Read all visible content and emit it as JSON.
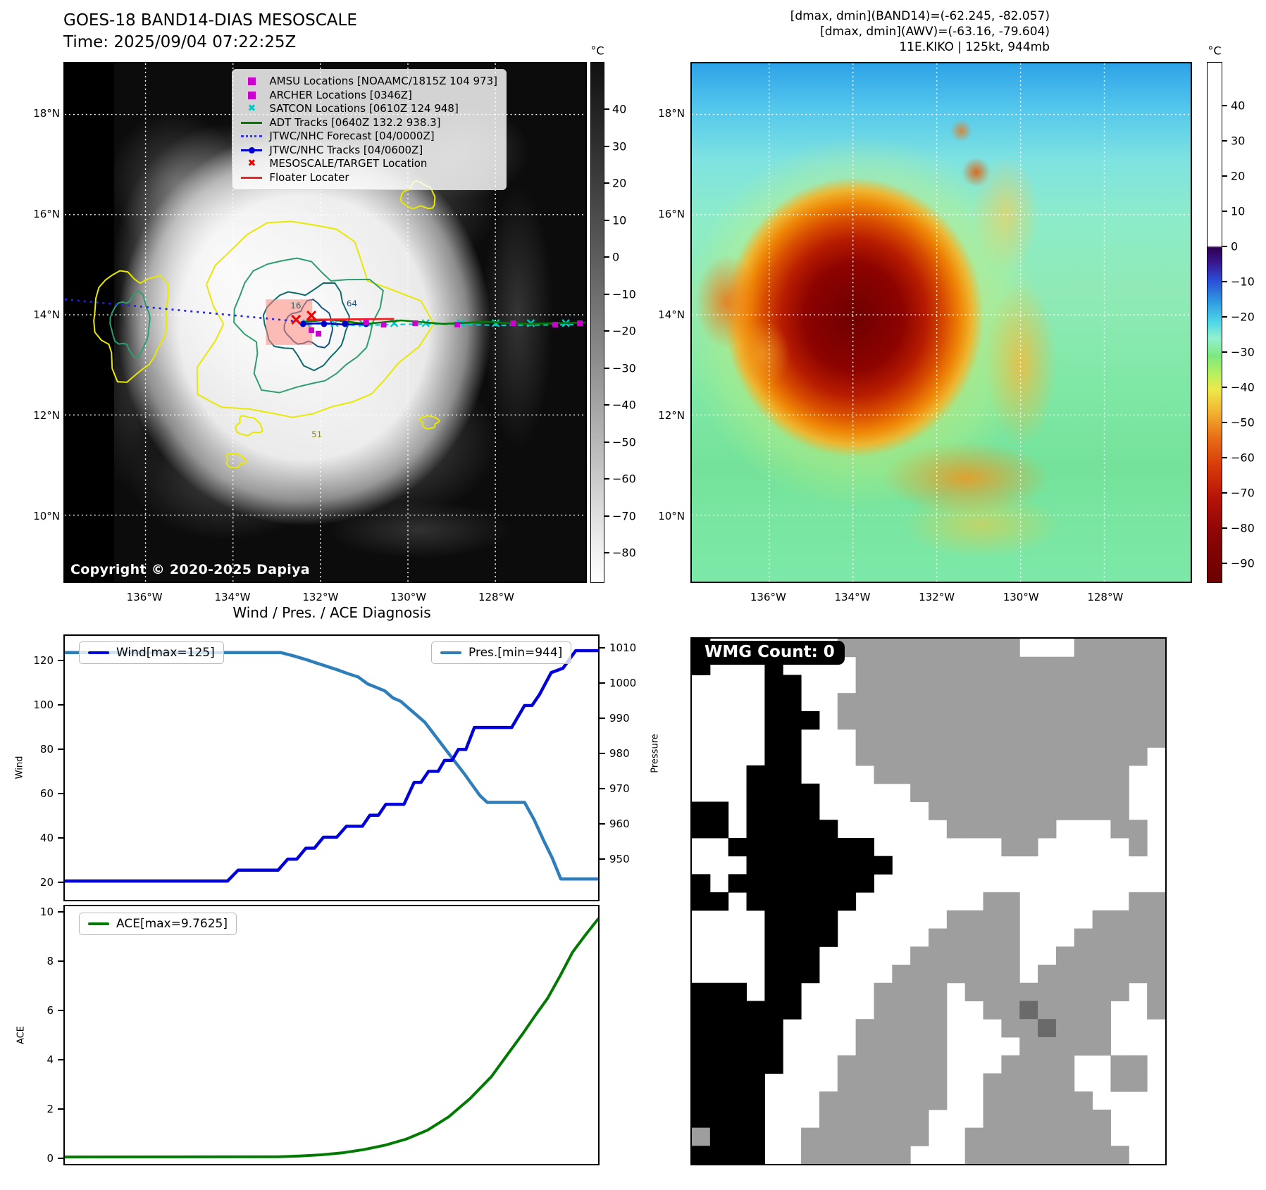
{
  "header": {
    "title_line1": "GOES-18 BAND14-DIAS MESOSCALE",
    "title_line2": "Time: 2025/09/04 07:22:25Z",
    "info_line1": "[dmax, dmin](BAND14)=(-62.245, -82.057)",
    "info_line2": "[dmax, dmin](AWV)=(-63.16, -79.604)",
    "info_line3": "11E.KIKO | 125kt, 944mb"
  },
  "left_map": {
    "legend": [
      {
        "marker": "square",
        "color": "#cc00cc",
        "label": "AMSU Locations [NOAAMC/1815Z 104 973]"
      },
      {
        "marker": "square",
        "color": "#cc00cc",
        "label": "ARCHER Locations [0346Z]"
      },
      {
        "marker": "x",
        "color": "#00c8c8",
        "label": "SATCON Locations [0610Z 124 948]"
      },
      {
        "marker": "line",
        "color": "#007a00",
        "label": "ADT Tracks [0640Z 132.2 938.3]"
      },
      {
        "marker": "dotted",
        "color": "#3434ff",
        "label": "JTWC/NHC Forecast [04/0000Z]"
      },
      {
        "marker": "line-dot",
        "color": "#0000cc",
        "label": "JTWC/NHC Tracks [04/0600Z]"
      },
      {
        "marker": "x",
        "color": "#ee0000",
        "label": "MESOSCALE/TARGET Location"
      },
      {
        "marker": "line",
        "color": "#ee2222",
        "label": "Floater Locater"
      }
    ],
    "lat_ticks": [
      "18°N",
      "16°N",
      "14°N",
      "12°N",
      "10°N"
    ],
    "lon_ticks": [
      "136°W",
      "134°W",
      "132°W",
      "130°W",
      "128°W"
    ],
    "copyright": "Copyright © 2020-2025 Dapiya",
    "contour_labels": [
      "16",
      "64",
      "51"
    ],
    "colorbar": {
      "unit": "°C",
      "ticks": [
        40,
        30,
        20,
        10,
        0,
        -10,
        -20,
        -30,
        -40,
        -50,
        -60,
        -70,
        -80
      ]
    }
  },
  "right_map": {
    "lat_ticks": [
      "18°N",
      "16°N",
      "14°N",
      "12°N",
      "10°N"
    ],
    "lon_ticks": [
      "136°W",
      "134°W",
      "132°W",
      "130°W",
      "128°W"
    ],
    "colorbar": {
      "unit": "°C",
      "ticks": [
        40,
        30,
        20,
        10,
        0,
        -10,
        -20,
        -30,
        -40,
        -50,
        -60,
        -70,
        -80,
        -90
      ]
    }
  },
  "wmg": {
    "count_label": "WMG Count: 0",
    "palette": {
      "g": "#9e9e9e",
      "k": "#000000",
      "d": "#6a6a6a",
      ".": "#ffffff"
    },
    "grid": [
      "k.......gggggggggg...ggggg",
      "k...k....ggggggggggggggggg",
      "....kk...ggggggggggggggggg",
      "....kk..gggggggggggggggggg",
      "....kkk.gggggggggggggggggg",
      "....kk...ggggggggggggggggg",
      "....kk...gggggggggggggggg.",
      "...kkk....gggggggggggggg..",
      "...kkkk.....gggggggggggg..",
      "kk.kkkk......ggggggggggg..",
      "kk.kkkkk......gggggg...gg.",
      "..kkkkkkkk.......gg.....g.",
      "...kkkkkkkk...............",
      "k.kkkkkkkk................",
      "kk.kkkkkk.......gg......gg",
      "....kkkk......gggg....gggg",
      "....kkkk.....ggggg...ggggg",
      "....kkk.....gggggg..gggggg",
      "....kkk....ggggggg.ggggggg",
      "kkk.kk....gggg.ggggggggg.g",
      "kkkkkk....gggg..ggdgggg..g",
      "kkkkk....ggggg...ggdggg...",
      "kkkkk....ggggg....ggggg...",
      "kkkkk...gggggg...gggg..gg.",
      "kkkk....gggggg..ggggg..gg.",
      "kkkk...ggggggg..gggggg....",
      "kkkk...gggggg...ggggggg...",
      "gkkk..ggggggg..gggggggg...",
      "kkkk..gggggg...ggggggggg.."
    ]
  },
  "chart_data": [
    {
      "type": "line",
      "title": "Wind / Pres. / ACE Diagnosis",
      "ylabel_left": "Wind",
      "ylabel_right": "Pressure",
      "y_left_ticks": [
        120,
        100,
        80,
        60,
        40,
        20
      ],
      "y_right_ticks": [
        1010,
        1000,
        990,
        980,
        970,
        960,
        950
      ],
      "ylim_left": [
        11.4,
        131.7
      ],
      "ylim_right": [
        937.2,
        1013.8
      ],
      "grid": false,
      "legend_position": "upper-left / upper-right",
      "series": [
        {
          "name": "Wind[max=125]",
          "color": "#0000dd",
          "axis": "left",
          "points": [
            [
              0,
              20
            ],
            [
              0.305,
              20
            ],
            [
              0.325,
              25
            ],
            [
              0.4,
              25
            ],
            [
              0.418,
              30
            ],
            [
              0.435,
              30
            ],
            [
              0.452,
              35
            ],
            [
              0.468,
              35
            ],
            [
              0.485,
              40
            ],
            [
              0.51,
              40
            ],
            [
              0.528,
              45
            ],
            [
              0.558,
              45
            ],
            [
              0.572,
              50
            ],
            [
              0.588,
              50
            ],
            [
              0.602,
              55
            ],
            [
              0.636,
              55
            ],
            [
              0.655,
              65
            ],
            [
              0.668,
              65
            ],
            [
              0.682,
              70
            ],
            [
              0.7,
              70
            ],
            [
              0.712,
              75
            ],
            [
              0.726,
              75
            ],
            [
              0.738,
              80
            ],
            [
              0.752,
              80
            ],
            [
              0.768,
              90
            ],
            [
              0.838,
              90
            ],
            [
              0.862,
              100
            ],
            [
              0.876,
              100
            ],
            [
              0.89,
              105
            ],
            [
              0.912,
              115
            ],
            [
              0.934,
              117
            ],
            [
              0.958,
              125
            ],
            [
              1,
              125
            ]
          ]
        },
        {
          "name": "Pres.[min=944]",
          "color": "#2e7ebc",
          "axis": "right",
          "points": [
            [
              0,
              1009
            ],
            [
              0.405,
              1009
            ],
            [
              0.43,
              1008
            ],
            [
              0.452,
              1007
            ],
            [
              0.472,
              1006
            ],
            [
              0.492,
              1005
            ],
            [
              0.512,
              1004
            ],
            [
              0.53,
              1003
            ],
            [
              0.55,
              1002
            ],
            [
              0.568,
              1000
            ],
            [
              0.584,
              999
            ],
            [
              0.6,
              998
            ],
            [
              0.615,
              996
            ],
            [
              0.63,
              995
            ],
            [
              0.645,
              993
            ],
            [
              0.66,
              991
            ],
            [
              0.675,
              989
            ],
            [
              0.69,
              986
            ],
            [
              0.705,
              983
            ],
            [
              0.72,
              980
            ],
            [
              0.735,
              977
            ],
            [
              0.75,
              974
            ],
            [
              0.764,
              971
            ],
            [
              0.778,
              968
            ],
            [
              0.792,
              966
            ],
            [
              0.862,
              966
            ],
            [
              0.88,
              961
            ],
            [
              0.898,
              955
            ],
            [
              0.914,
              950
            ],
            [
              0.93,
              944
            ],
            [
              1,
              944
            ]
          ]
        }
      ]
    },
    {
      "type": "line",
      "ylabel": "ACE",
      "y_ticks": [
        0,
        2,
        4,
        6,
        8,
        10
      ],
      "ylim": [
        -0.29,
        10.29
      ],
      "grid": false,
      "series": [
        {
          "name": "ACE[max=9.7625]",
          "color": "#007a00",
          "points": [
            [
              0,
              0
            ],
            [
              0.4,
              0.01
            ],
            [
              0.44,
              0.04
            ],
            [
              0.48,
              0.09
            ],
            [
              0.52,
              0.17
            ],
            [
              0.56,
              0.3
            ],
            [
              0.6,
              0.48
            ],
            [
              0.64,
              0.73
            ],
            [
              0.68,
              1.1
            ],
            [
              0.72,
              1.65
            ],
            [
              0.76,
              2.4
            ],
            [
              0.8,
              3.3
            ],
            [
              0.83,
              4.2
            ],
            [
              0.86,
              5.1
            ],
            [
              0.882,
              5.8
            ],
            [
              0.905,
              6.5
            ],
            [
              0.928,
              7.4
            ],
            [
              0.952,
              8.4
            ],
            [
              0.976,
              9.1
            ],
            [
              1,
              9.7625
            ]
          ]
        }
      ]
    }
  ]
}
